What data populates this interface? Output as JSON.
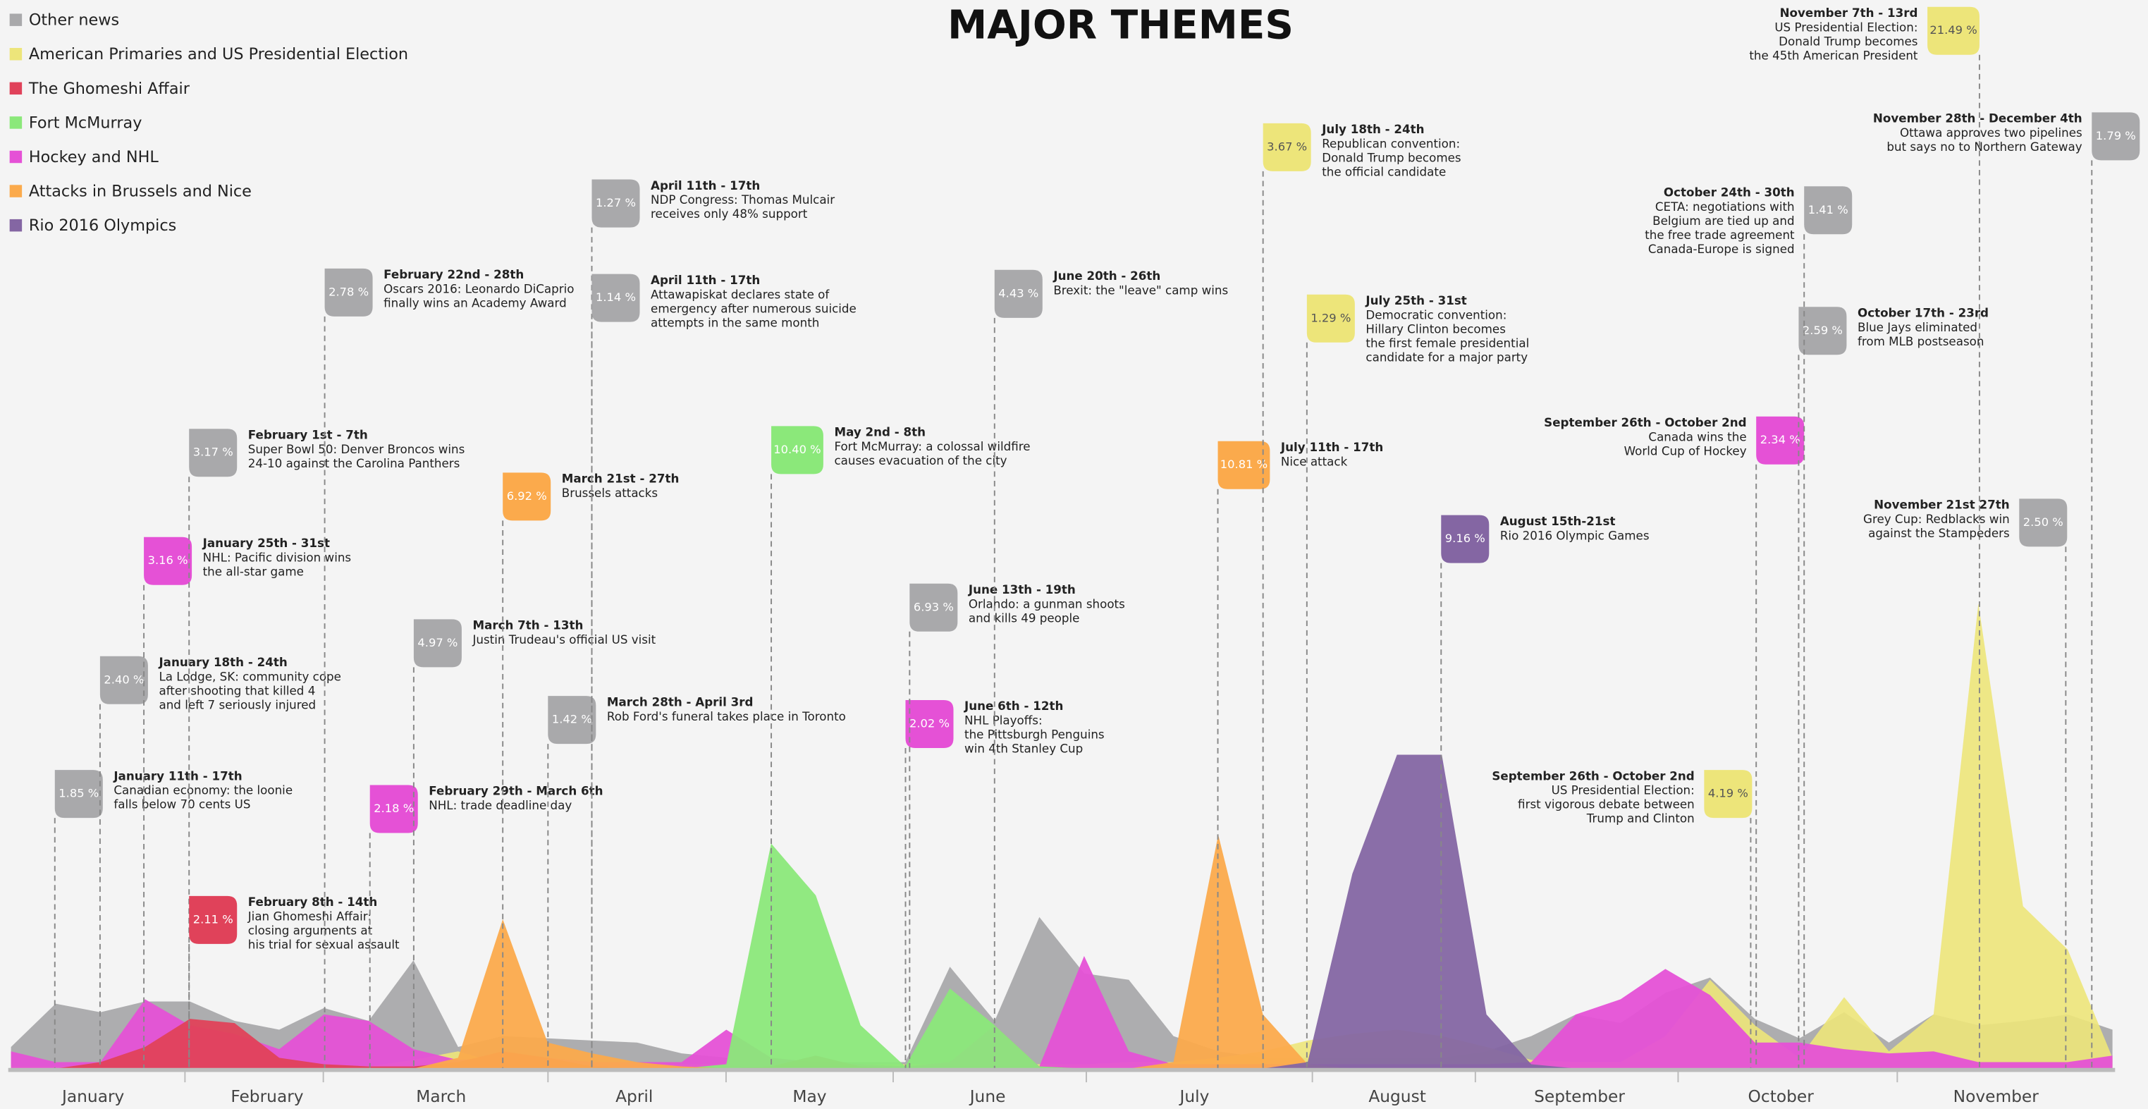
{
  "chart_data": {
    "type": "area",
    "title": "MAJOR THEMES",
    "months": [
      "January",
      "February",
      "March",
      "April",
      "May",
      "June",
      "July",
      "August",
      "September",
      "October",
      "November"
    ],
    "ylim": [
      0,
      25
    ],
    "series": [
      {
        "name": "Other news",
        "color": "#a9a9ab",
        "values": [
          1.0,
          3.0,
          2.6,
          3.1,
          3.1,
          2.2,
          1.8,
          2.8,
          2.2,
          5.0,
          1.0,
          1.5,
          1.4,
          1.3,
          1.2,
          0.7,
          0.5,
          0.3,
          0.3,
          0.3,
          0.3,
          4.7,
          2.2,
          7.0,
          4.4,
          4.1,
          1.5,
          0.8,
          0.5,
          0.5,
          0.5,
          0.5,
          0.5,
          0.8,
          1.5,
          2.5,
          2.1,
          3.5,
          4.2,
          2.3,
          1.4,
          2.6,
          1.2,
          2.5,
          2.0,
          2.2,
          2.5,
          1.8
        ]
      },
      {
        "name": "American Primaries and US Presidential Election",
        "color": "#ede57a",
        "values": [
          0.1,
          0.1,
          0.1,
          0.1,
          0.1,
          0.1,
          0.1,
          0.1,
          0.1,
          0.4,
          0.8,
          0.2,
          0.2,
          0.2,
          0.2,
          0.2,
          0.2,
          0.2,
          0.2,
          0.2,
          0.2,
          0.2,
          0.2,
          0.2,
          0.2,
          0.3,
          0.3,
          0.5,
          0.8,
          1.3,
          1.6,
          1.8,
          1.5,
          1.0,
          0.4,
          0.3,
          0.3,
          1.5,
          4.1,
          2.0,
          0.5,
          3.3,
          0.8,
          2.5,
          21.49,
          7.5,
          5.5,
          0.5
        ]
      },
      {
        "name": "The Ghomeshi Affair",
        "color": "#e0425a",
        "values": [
          0,
          0,
          0.3,
          1.0,
          2.3,
          2.1,
          0.5,
          0.2,
          0.1,
          0.1,
          0.3,
          0.8,
          0.5,
          0.1,
          0,
          0,
          0,
          0.1,
          0.6,
          0.1,
          0,
          0,
          0,
          0,
          0,
          0,
          0,
          0,
          0,
          0,
          0,
          0,
          0,
          0,
          0,
          0,
          0,
          0,
          0,
          0,
          0,
          0,
          0,
          0,
          0,
          0,
          0,
          0
        ]
      },
      {
        "name": "Fort McMurray",
        "color": "#8be87a",
        "values": [
          0,
          0,
          0,
          0,
          0,
          0,
          0,
          0,
          0,
          0,
          0,
          0,
          0,
          0,
          0,
          0,
          0.2,
          10.4,
          8.0,
          2.0,
          0.1,
          3.7,
          2.0,
          0.1,
          0,
          0,
          0,
          0,
          0,
          0,
          0,
          0,
          0,
          0,
          0,
          0,
          0,
          0,
          0,
          0,
          0,
          0,
          0,
          0,
          0,
          0,
          0,
          0
        ]
      },
      {
        "name": "Hockey and NHL",
        "color": "#e551d6",
        "values": [
          0.8,
          0.3,
          0.3,
          3.2,
          2.0,
          1.6,
          0.9,
          2.5,
          2.2,
          0.9,
          0.4,
          0.5,
          0.5,
          0.3,
          0.3,
          0.3,
          1.8,
          0.5,
          0.3,
          0.2,
          0.1,
          0.3,
          2.0,
          0.1,
          5.2,
          0.8,
          0.2,
          0.2,
          0.2,
          0.2,
          0.2,
          0.2,
          0.2,
          0.2,
          0.3,
          2.5,
          3.2,
          4.6,
          3.4,
          1.2,
          1.2,
          0.9,
          0.7,
          0.8,
          0.3,
          0.3,
          0.3,
          0.6
        ]
      },
      {
        "name": "Attacks in Brussels and Nice",
        "color": "#fbaa4c",
        "values": [
          0,
          0,
          0,
          0,
          0,
          0,
          0,
          0,
          0,
          0,
          0.5,
          6.9,
          1.2,
          0.7,
          0.3,
          0.1,
          0,
          0,
          0,
          0,
          0,
          0,
          0,
          0,
          0,
          0,
          0.3,
          10.8,
          2.5,
          0.2,
          0,
          0,
          0,
          0,
          0,
          0,
          0,
          0,
          0,
          0,
          0,
          0,
          0,
          0,
          0,
          0,
          0,
          0
        ]
      },
      {
        "name": "Rio 2016 Olympics",
        "color": "#8466a3",
        "values": [
          0,
          0,
          0,
          0,
          0,
          0,
          0,
          0,
          0,
          0,
          0,
          0,
          0,
          0,
          0,
          0,
          0,
          0,
          0,
          0,
          0,
          0,
          0,
          0,
          0,
          0,
          0,
          0,
          0,
          0.3,
          9.0,
          14.5,
          14.5,
          2.5,
          0.2,
          0,
          0,
          0,
          0,
          0,
          0,
          0,
          0,
          0,
          0,
          0,
          0,
          0
        ]
      }
    ],
    "annotations": [
      {
        "date": "January 11th - 17th",
        "lines": [
          "Canadian economy: the loonie",
          "falls below 70 cents US"
        ],
        "value": 1.85,
        "value_label": "1.85 %",
        "color": "#a9a9ab"
      },
      {
        "date": "January 18th - 24th",
        "lines": [
          "La Lodge, SK: community cope",
          "after shooting that killed 4",
          "and left 7 seriously injured"
        ],
        "value": 2.4,
        "value_label": "2.40 %",
        "color": "#a9a9ab"
      },
      {
        "date": "January 25th - 31st",
        "lines": [
          "NHL: Pacific division wins",
          "the all-star game"
        ],
        "value": 3.16,
        "value_label": "3.16 %",
        "color": "#e551d6"
      },
      {
        "date": "February 1st - 7th",
        "lines": [
          "Super Bowl 50: Denver Broncos wins",
          "24-10 against the Carolina Panthers"
        ],
        "value": 3.17,
        "value_label": "3.17 %",
        "color": "#a9a9ab"
      },
      {
        "date": "February 8th - 14th",
        "lines": [
          "Jian Ghomeshi Affair:",
          "closing arguments at",
          "his trial for sexual assault"
        ],
        "value": 2.11,
        "value_label": "2.11 %",
        "color": "#e0425a"
      },
      {
        "date": "February 22nd - 28th",
        "lines": [
          "Oscars 2016: Leonardo DiCaprio",
          "finally wins an Academy Award"
        ],
        "value": 2.78,
        "value_label": "2.78 %",
        "color": "#a9a9ab"
      },
      {
        "date": "February 29th - March 6th",
        "lines": [
          "NHL: trade deadline day"
        ],
        "value": 2.18,
        "value_label": "2.18 %",
        "color": "#e551d6"
      },
      {
        "date": "March 7th - 13th",
        "lines": [
          "Justin Trudeau's official US visit"
        ],
        "value": 4.97,
        "value_label": "4.97 %",
        "color": "#a9a9ab"
      },
      {
        "date": "March 21st - 27th",
        "lines": [
          "Brussels attacks"
        ],
        "value": 6.92,
        "value_label": "6.92 %",
        "color": "#fbaa4c"
      },
      {
        "date": "March 28th - April 3rd",
        "lines": [
          "Rob Ford's funeral takes place in Toronto"
        ],
        "value": 1.42,
        "value_label": "1.42 %",
        "color": "#a9a9ab"
      },
      {
        "date": "April 11th - 17th",
        "lines": [
          "NDP Congress: Thomas Mulcair",
          "receives only 48% support"
        ],
        "value": 1.27,
        "value_label": "1.27 %",
        "color": "#a9a9ab"
      },
      {
        "date": "April 11th - 17th",
        "lines": [
          "Attawapiskat declares state of",
          "emergency after numerous suicide",
          "attempts in the same month"
        ],
        "value": 1.14,
        "value_label": "1.14 %",
        "color": "#a9a9ab"
      },
      {
        "date": "May 2nd - 8th",
        "lines": [
          "Fort McMurray: a colossal wildfire",
          "causes evacuation of the city"
        ],
        "value": 10.4,
        "value_label": "10.40 %",
        "color": "#8be87a"
      },
      {
        "date": "June 6th - 12th",
        "lines": [
          "NHL Playoffs:",
          "the Pittsburgh Penguins",
          "win 4th Stanley Cup"
        ],
        "value": 2.02,
        "value_label": "2.02 %",
        "color": "#e551d6"
      },
      {
        "date": "June 13th - 19th",
        "lines": [
          "Orlando: a gunman shoots",
          "and kills 49 people"
        ],
        "value": 6.93,
        "value_label": "6.93 %",
        "color": "#a9a9ab"
      },
      {
        "date": "June 20th - 26th",
        "lines": [
          "Brexit: the \"leave\" camp wins"
        ],
        "value": 4.43,
        "value_label": "4.43 %",
        "color": "#a9a9ab"
      },
      {
        "date": "July 11th - 17th",
        "lines": [
          "Nice attack"
        ],
        "value": 10.81,
        "value_label": "10.81 %",
        "color": "#fbaa4c"
      },
      {
        "date": "July 18th - 24th",
        "lines": [
          "Republican convention:",
          "Donald Trump becomes",
          "the official candidate"
        ],
        "value": 3.67,
        "value_label": "3.67 %",
        "color": "#ede57a"
      },
      {
        "date": "July 25th - 31st",
        "lines": [
          "Democratic convention:",
          "Hillary Clinton becomes",
          "the first female presidential",
          "candidate for a major party"
        ],
        "value": 1.29,
        "value_label": "1.29 %",
        "color": "#ede57a"
      },
      {
        "date": "August 15th-21st",
        "lines": [
          "Rio 2016 Olympic Games"
        ],
        "value": 9.16,
        "value_label": "9.16 %",
        "color": "#8466a3"
      },
      {
        "date": "September 26th - October 2nd",
        "lines": [
          "US Presidential Election:",
          "first vigorous debate between",
          "Trump and Clinton"
        ],
        "value": 4.19,
        "value_label": "4.19 %",
        "color": "#ede57a"
      },
      {
        "date": "September 26th - October 2nd",
        "lines": [
          "Canada wins the",
          "World Cup of Hockey"
        ],
        "value": 2.34,
        "value_label": "2.34 %",
        "color": "#e551d6"
      },
      {
        "date": "October 17th - 23rd",
        "lines": [
          "Blue Jays eliminated",
          "from MLB postseason"
        ],
        "value": 2.59,
        "value_label": "2.59 %",
        "color": "#a9a9ab"
      },
      {
        "date": "October 24th - 30th",
        "lines": [
          "CETA: negotiations with",
          "Belgium are tied up and",
          "the free trade agreement",
          "Canada-Europe is signed"
        ],
        "value": 1.41,
        "value_label": "1.41 %",
        "color": "#a9a9ab"
      },
      {
        "date": "November 7th - 13rd",
        "lines": [
          "US Presidential Election:",
          "Donald Trump becomes",
          "the 45th American President"
        ],
        "value": 21.49,
        "value_label": "21.49 %",
        "color": "#ede57a"
      },
      {
        "date": "November 21st 27th",
        "lines": [
          "Grey Cup: Redblacks win",
          "against the Stampeders"
        ],
        "value": 2.5,
        "value_label": "2.50 %",
        "color": "#a9a9ab"
      },
      {
        "date": "November 28th - December 4th",
        "lines": [
          "Ottawa approves two pipelines",
          "but says no to Northern Gateway"
        ],
        "value": 1.79,
        "value_label": "1.79 %",
        "color": "#a9a9ab"
      }
    ]
  }
}
